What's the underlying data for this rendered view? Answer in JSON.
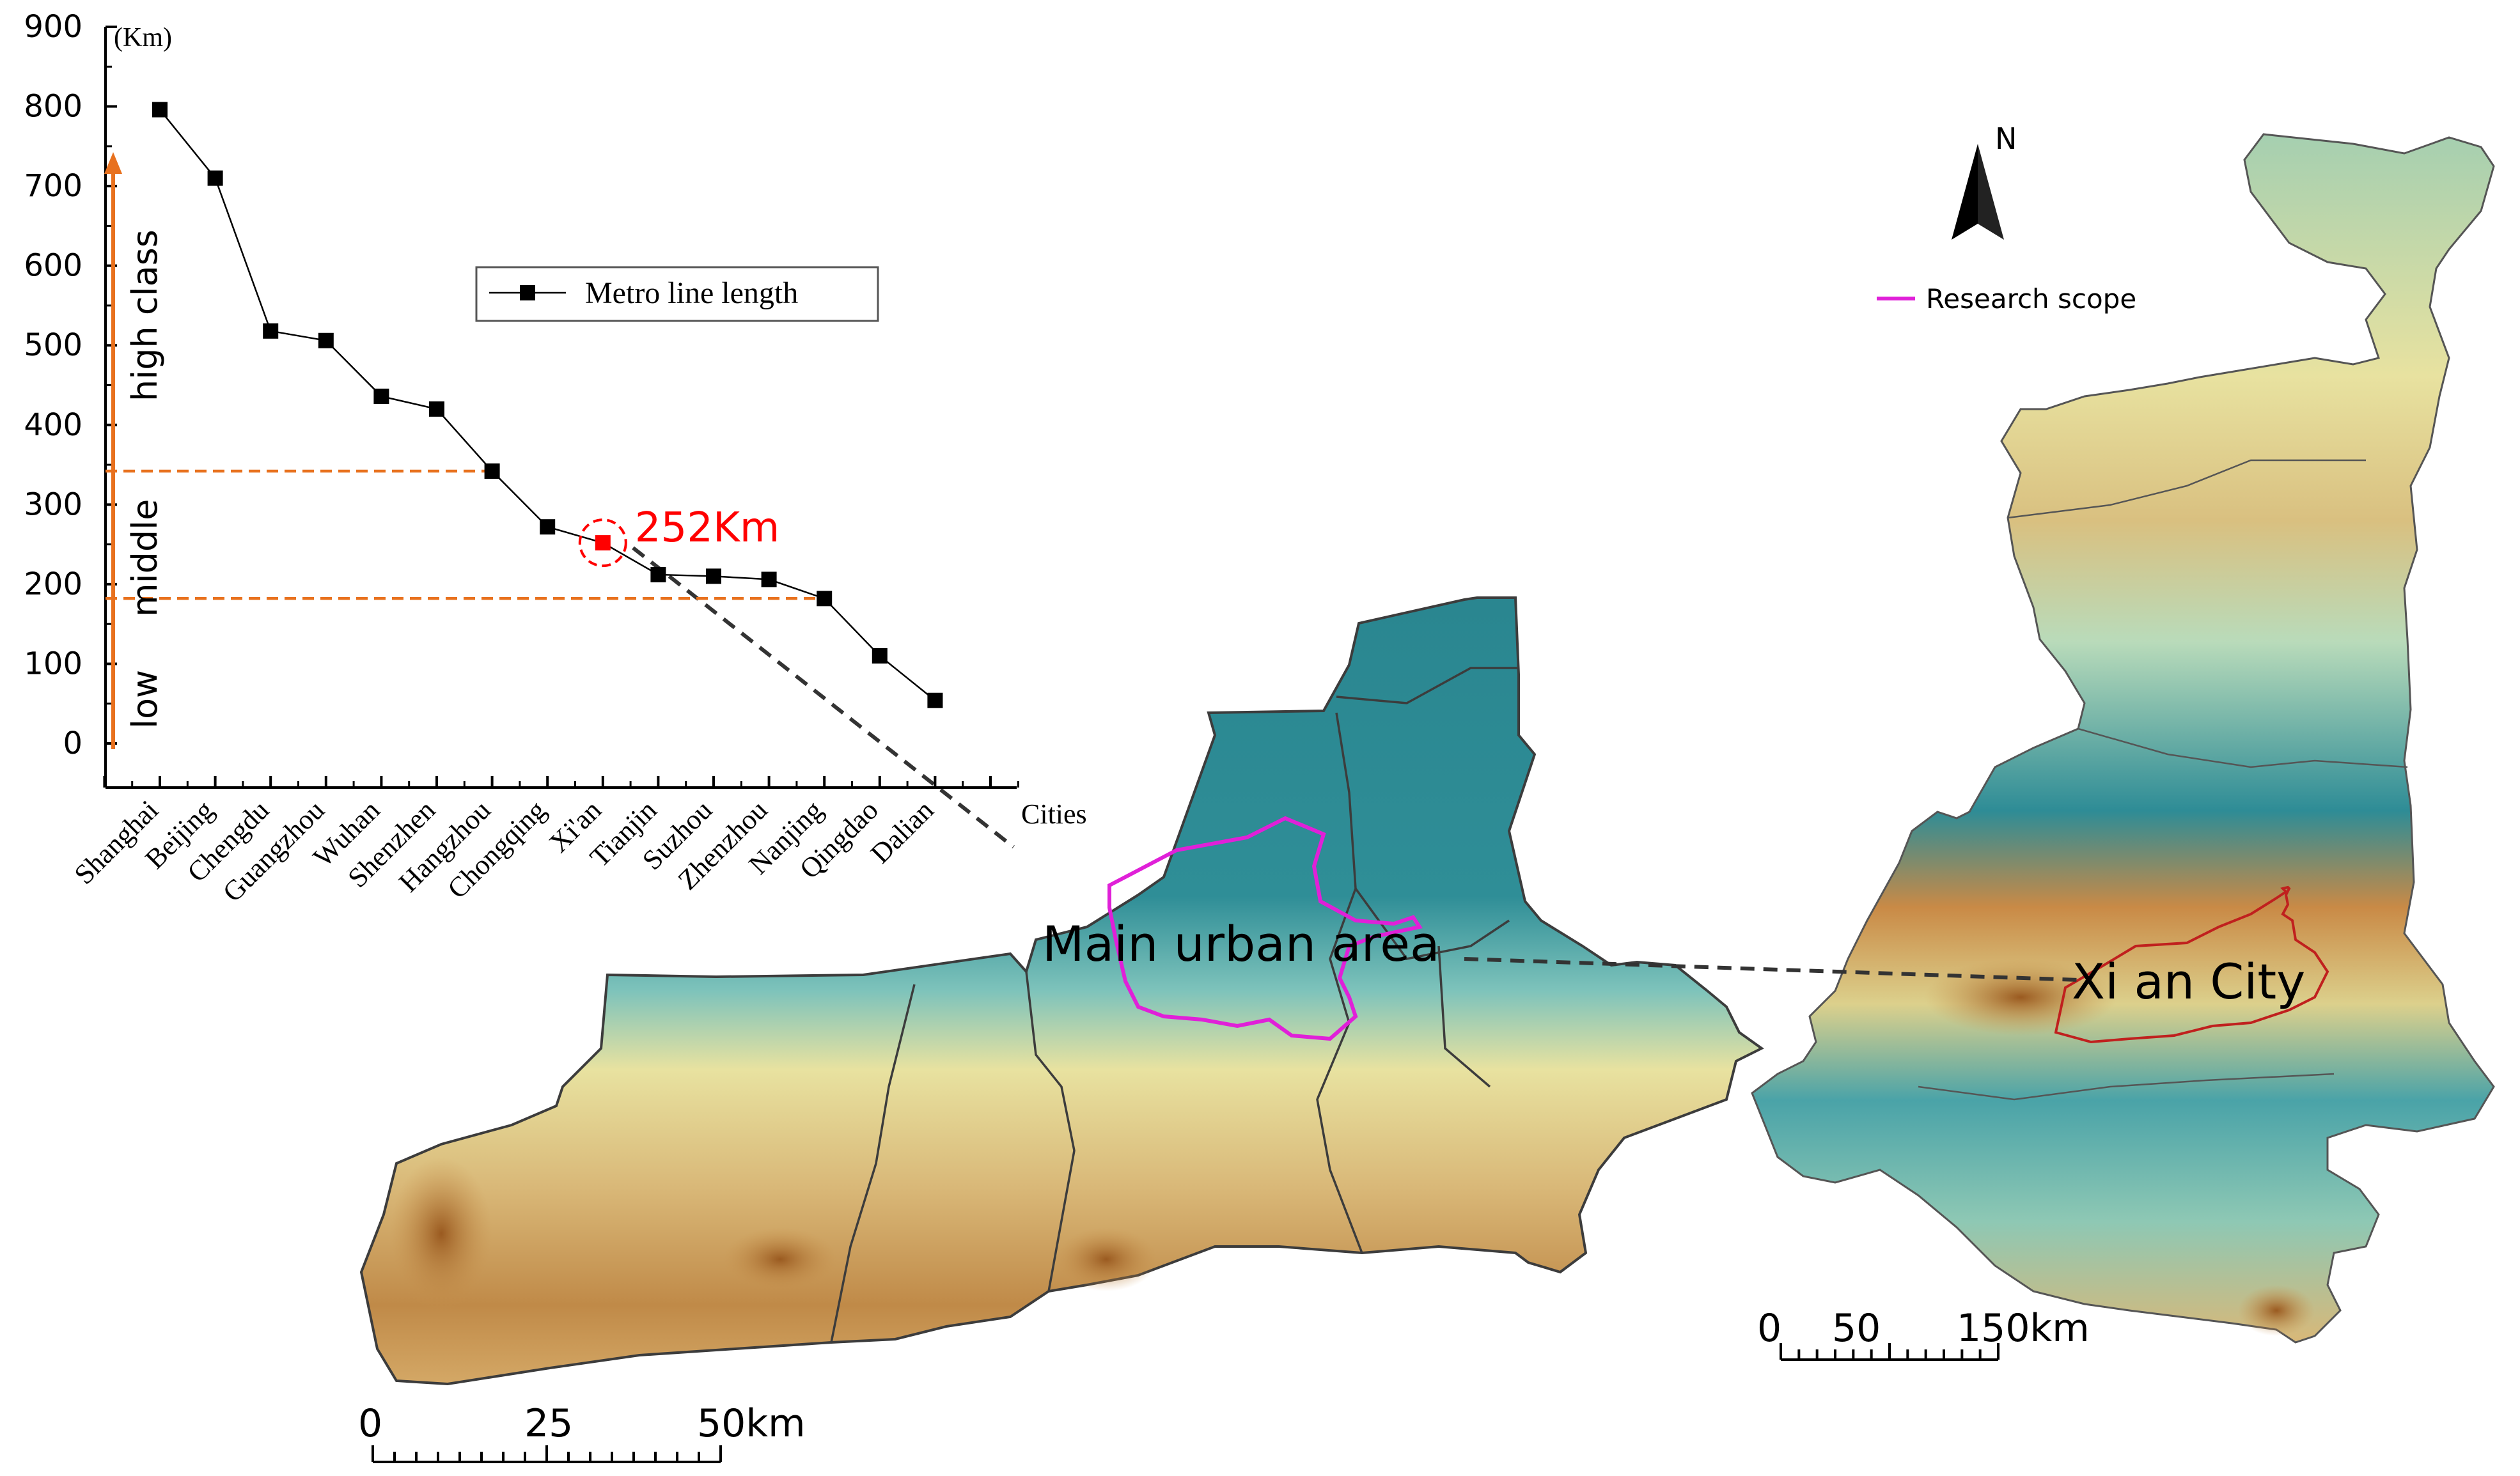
{
  "chart_data": {
    "type": "line",
    "ylabel_unit": "(Km)",
    "xlabel": "Cities",
    "ylim": [
      0,
      900
    ],
    "yticks": [
      0,
      100,
      200,
      300,
      400,
      500,
      600,
      700,
      800,
      900
    ],
    "categories": [
      "Shanghai",
      "Beijing",
      "Chengdu",
      "Guangzhou",
      "Wuhan",
      "Shenzhen",
      "Hangzhou",
      "Chongqing",
      "Xi'an",
      "Tianjin",
      "Suzhou",
      "Zhenzhou",
      "Nanjing",
      "Qingdao",
      "Dalian"
    ],
    "series": [
      {
        "name": "Metro line length",
        "values": [
          796,
          710,
          518,
          506,
          436,
          420,
          342,
          272,
          252,
          212,
          210,
          206,
          182,
          110,
          54
        ]
      }
    ],
    "legend_position": "top-center",
    "highlight": {
      "category": "Xi'an",
      "label": "252Km",
      "color": "#ff0000"
    },
    "class_thresholds": [
      342,
      182
    ],
    "class_labels": [
      "low",
      "middle",
      "high class"
    ],
    "threshold_color": "#e8711e"
  },
  "map": {
    "north_label": "N",
    "legend_label": "Research scope",
    "legend_color": "#e020d8",
    "main_label": "Main urban area",
    "city_label": "Xi an City",
    "scale_left": [
      "0",
      "25",
      "50km"
    ],
    "scale_right": [
      "0",
      "50",
      "150km"
    ],
    "colors": {
      "teal": "#2e8c96",
      "light_teal": "#7ec3bb",
      "yellow": "#e8e2a0",
      "tan": "#d4a866",
      "brown": "#a8692a",
      "boundary": "#3c3c3c",
      "research": "#e020d8",
      "xian": "#c0201e"
    }
  }
}
